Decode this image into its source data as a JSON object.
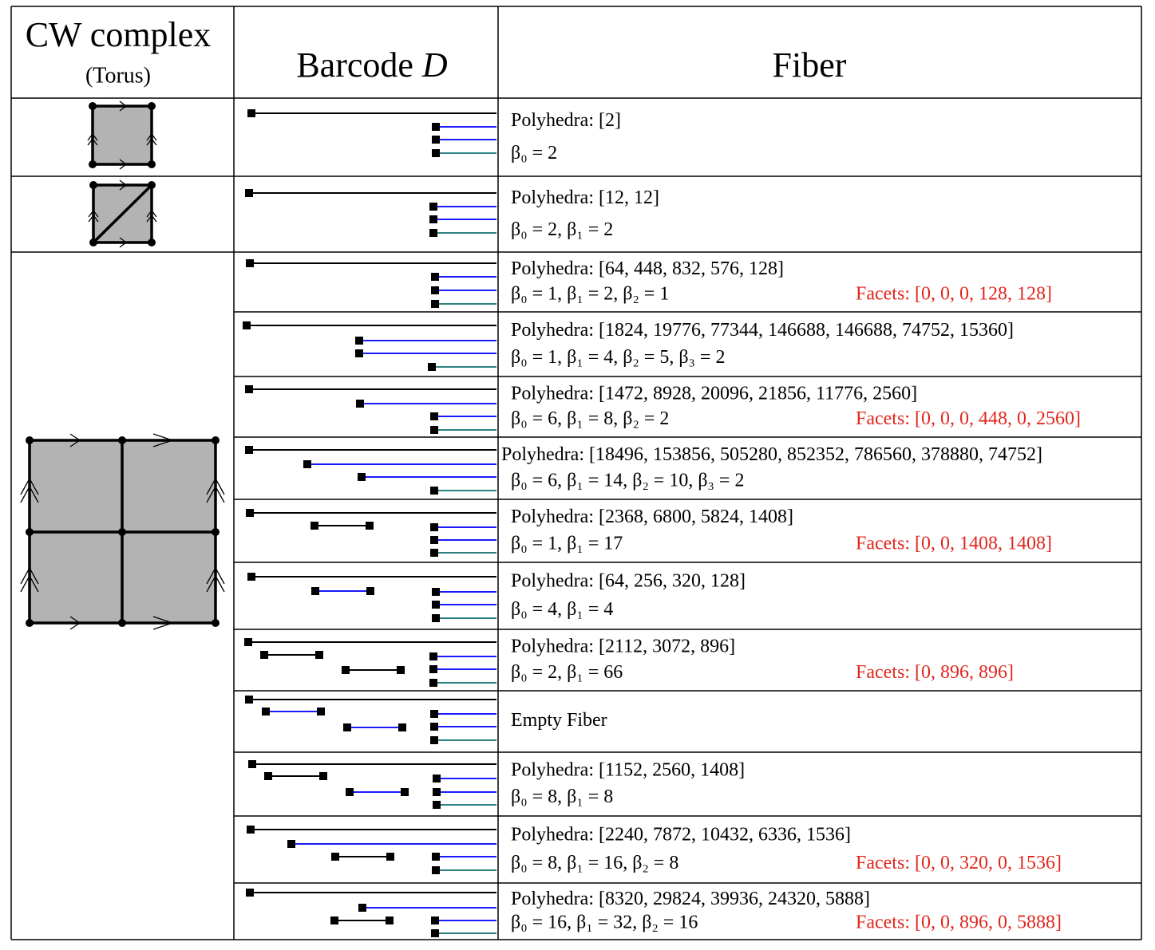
{
  "header": {
    "cw_complex": "CW complex",
    "cw_subtitle": "(Torus)",
    "barcode": "Barcode",
    "barcode_symbol": "D",
    "fiber": "Fiber"
  },
  "rows": [
    {
      "polyhedra": "Polyhedra: [2]",
      "betti": "β₀ = 2"
    },
    {
      "polyhedra": "Polyhedra: [12, 12]",
      "betti": "β₀ = 2, β₁ = 2"
    },
    {
      "polyhedra": "Polyhedra: [64, 448, 832, 576, 128]",
      "betti": "β₀ = 1, β₁ = 2, β₂ = 1",
      "facets": "Facets: [0, 0, 0, 128, 128]"
    },
    {
      "polyhedra": "Polyhedra: [1824, 19776, 77344, 146688, 146688, 74752, 15360]",
      "betti": "β₀ = 1, β₁ = 4, β₂ = 5, β₃ = 2"
    },
    {
      "polyhedra": "Polyhedra: [1472, 8928, 20096, 21856, 11776, 2560]",
      "betti": "β₀ = 6, β₁ = 8, β₂ = 2",
      "facets": "Facets: [0, 0, 0, 448, 0, 2560]"
    },
    {
      "polyhedra": "Polyhedra: [18496, 153856, 505280, 852352, 786560, 378880, 74752]",
      "betti": "β₀ = 6, β₁ = 14, β₂ = 10, β₃ = 2"
    },
    {
      "polyhedra": "Polyhedra: [2368, 6800, 5824, 1408]",
      "betti": "β₀ = 1, β₁ = 17",
      "facets": "Facets: [0, 0, 1408, 1408]"
    },
    {
      "polyhedra": "Polyhedra: [64, 256, 320, 128]",
      "betti": "β₀ = 4, β₁ = 4"
    },
    {
      "polyhedra": "Polyhedra: [2112, 3072, 896]",
      "betti": "β₀ = 2, β₁ = 66",
      "facets": "Facets: [0, 896, 896]"
    },
    {
      "polyhedra": "Empty Fiber"
    },
    {
      "polyhedra": "Polyhedra: [1152, 2560, 1408]",
      "betti": "β₀ = 8, β₁ = 8"
    },
    {
      "polyhedra": "Polyhedra: [2240, 7872, 10432, 6336, 1536]",
      "betti": "β₀ = 8, β₁ = 16, β₂ = 8",
      "facets": "Facets: [0, 0, 320, 0, 1536]"
    },
    {
      "polyhedra": "Polyhedra: [8320, 29824, 39936, 24320, 5888]",
      "betti": "β₀ = 16, β₁ = 32, β₂ = 16",
      "facets": "Facets: [0, 0, 896, 0, 5888]"
    }
  ]
}
